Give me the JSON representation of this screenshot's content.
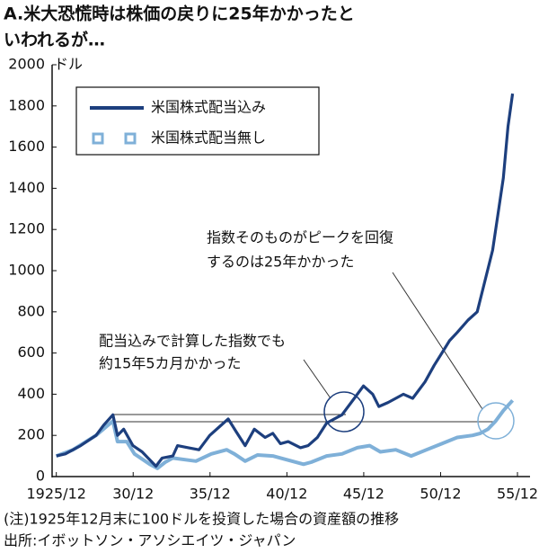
{
  "chart_data": {
    "type": "line",
    "title_lines": [
      "A.米大恐慌時は株価の戻りに25年かかったと",
      "いわれるが…"
    ],
    "y_unit": "ドル",
    "xlim": [
      1925.0,
      1956.5
    ],
    "xticks": [
      {
        "value": 1925.917,
        "label": "1925/12"
      },
      {
        "value": 1930.917,
        "label": "30/12"
      },
      {
        "value": 1935.917,
        "label": "35/12"
      },
      {
        "value": 1940.917,
        "label": "40/12"
      },
      {
        "value": 1945.917,
        "label": "45/12"
      },
      {
        "value": 1950.917,
        "label": "50/12"
      },
      {
        "value": 1955.917,
        "label": "55/12"
      }
    ],
    "ylim": [
      0,
      2000
    ],
    "yticks": [
      0,
      200,
      400,
      600,
      800,
      1000,
      1200,
      1400,
      1600,
      1800,
      2000
    ],
    "series": [
      {
        "name": "米国株式配当込み",
        "color": "#1d3f7e",
        "x": [
          1925.917,
          1926.5,
          1927.5,
          1928.5,
          1929.0,
          1929.6,
          1929.9,
          1930.3,
          1930.9,
          1931.5,
          1932.4,
          1932.8,
          1933.5,
          1933.8,
          1934.5,
          1935.2,
          1935.9,
          1936.5,
          1937.1,
          1937.6,
          1938.2,
          1938.8,
          1939.5,
          1940.0,
          1940.5,
          1941.0,
          1941.8,
          1942.3,
          1942.9,
          1943.5,
          1944.5,
          1945.3,
          1945.9,
          1946.5,
          1946.9,
          1947.5,
          1948.5,
          1949.1,
          1949.9,
          1950.5,
          1951.0,
          1951.5,
          1952.0,
          1952.7,
          1953.3,
          1953.8,
          1954.3,
          1954.7,
          1955.0,
          1955.3,
          1955.6
        ],
        "values": [
          100,
          110,
          150,
          200,
          250,
          300,
          200,
          230,
          150,
          120,
          50,
          90,
          100,
          150,
          140,
          130,
          200,
          240,
          280,
          220,
          150,
          230,
          190,
          210,
          160,
          170,
          140,
          150,
          190,
          260,
          300,
          380,
          440,
          400,
          340,
          360,
          400,
          380,
          460,
          540,
          600,
          660,
          700,
          760,
          800,
          950,
          1100,
          1300,
          1450,
          1700,
          1860
        ]
      },
      {
        "name": "米国株式配当無し",
        "color": "#7fb0d8",
        "x": [
          1925.917,
          1927.0,
          1928.5,
          1929.6,
          1929.9,
          1930.5,
          1931.0,
          1932.0,
          1932.5,
          1933.0,
          1933.5,
          1934.5,
          1935.0,
          1936.0,
          1937.0,
          1937.5,
          1938.2,
          1939.0,
          1940.0,
          1941.0,
          1942.0,
          1942.5,
          1943.5,
          1944.5,
          1945.5,
          1946.3,
          1947.0,
          1948.0,
          1949.0,
          1950.0,
          1951.0,
          1952.0,
          1953.0,
          1953.5,
          1954.0,
          1954.5,
          1955.0,
          1955.6
        ],
        "values": [
          100,
          130,
          200,
          270,
          170,
          170,
          110,
          60,
          40,
          70,
          90,
          80,
          75,
          110,
          130,
          110,
          75,
          105,
          100,
          80,
          60,
          70,
          100,
          110,
          140,
          150,
          120,
          130,
          100,
          130,
          160,
          190,
          200,
          210,
          230,
          270,
          320,
          370
        ]
      }
    ],
    "annotations": [
      [
        "指数そのものがピークを回復",
        "するのは25年かかった"
      ],
      [
        "配当込みで計算した指数でも",
        "約15年5カ月かかった"
      ]
    ],
    "footnotes": [
      "(注)1925年12月末に100ドルを投資した場合の資産額の推移",
      "出所:イボットソン・アソシエイツ・ジャパン"
    ]
  }
}
